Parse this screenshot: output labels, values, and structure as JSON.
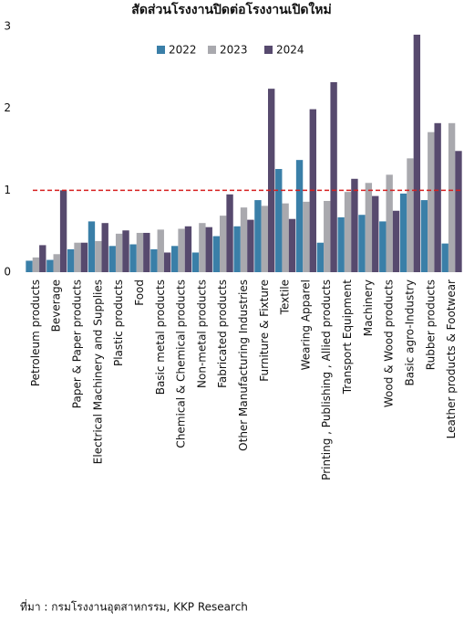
{
  "chart_data": {
    "type": "bar",
    "title": "สัดส่วนโรงงานปิดต่อโรงงานเปิดใหม่",
    "source": "ที่มา : กรมโรงงานอุตสาหกรรม, KKP Research",
    "categories": [
      "Petroleum products",
      "Beverage",
      "Paper & Paper products",
      "Electrical Machinery and Supplies",
      "Plastic products",
      "Food",
      "Basic metal products",
      "Chemical & Chemical products",
      "Non-metal products",
      "Fabricated products",
      "Other Manufacturing Industries",
      "Furniture & Fixture",
      "Textile",
      "Wearing Apparel",
      "Printing , Publishing , Allied products",
      "Transport Equipment",
      "Machinery",
      "Wood & Wood products",
      "Basic agro-Industry",
      "Rubber products",
      "Leather products & Footwear"
    ],
    "series": [
      {
        "name": "2022",
        "color": "#3a7fa8",
        "values": [
          0.14,
          0.15,
          0.28,
          0.62,
          0.32,
          0.34,
          0.28,
          0.32,
          0.24,
          0.44,
          0.56,
          0.88,
          1.26,
          1.37,
          0.36,
          0.67,
          0.7,
          0.62,
          0.96,
          0.88,
          0.35
        ]
      },
      {
        "name": "2023",
        "color": "#a9a9ae",
        "values": [
          0.18,
          0.22,
          0.36,
          0.38,
          0.47,
          0.48,
          0.52,
          0.53,
          0.6,
          0.69,
          0.79,
          0.81,
          0.84,
          0.86,
          0.87,
          0.98,
          1.09,
          1.19,
          1.39,
          1.71,
          1.82
        ]
      },
      {
        "name": "2024",
        "color": "#574a6e",
        "values": [
          0.33,
          1.0,
          0.36,
          0.6,
          0.51,
          0.48,
          0.24,
          0.56,
          0.55,
          0.95,
          0.64,
          2.24,
          0.65,
          1.99,
          2.32,
          1.14,
          0.93,
          0.75,
          2.9,
          1.82,
          1.48
        ]
      }
    ],
    "reference_line": 1,
    "reference_color": "#d62020",
    "ylim": [
      0,
      3
    ],
    "yticks": [
      0,
      1,
      2,
      3
    ],
    "grid": false
  }
}
